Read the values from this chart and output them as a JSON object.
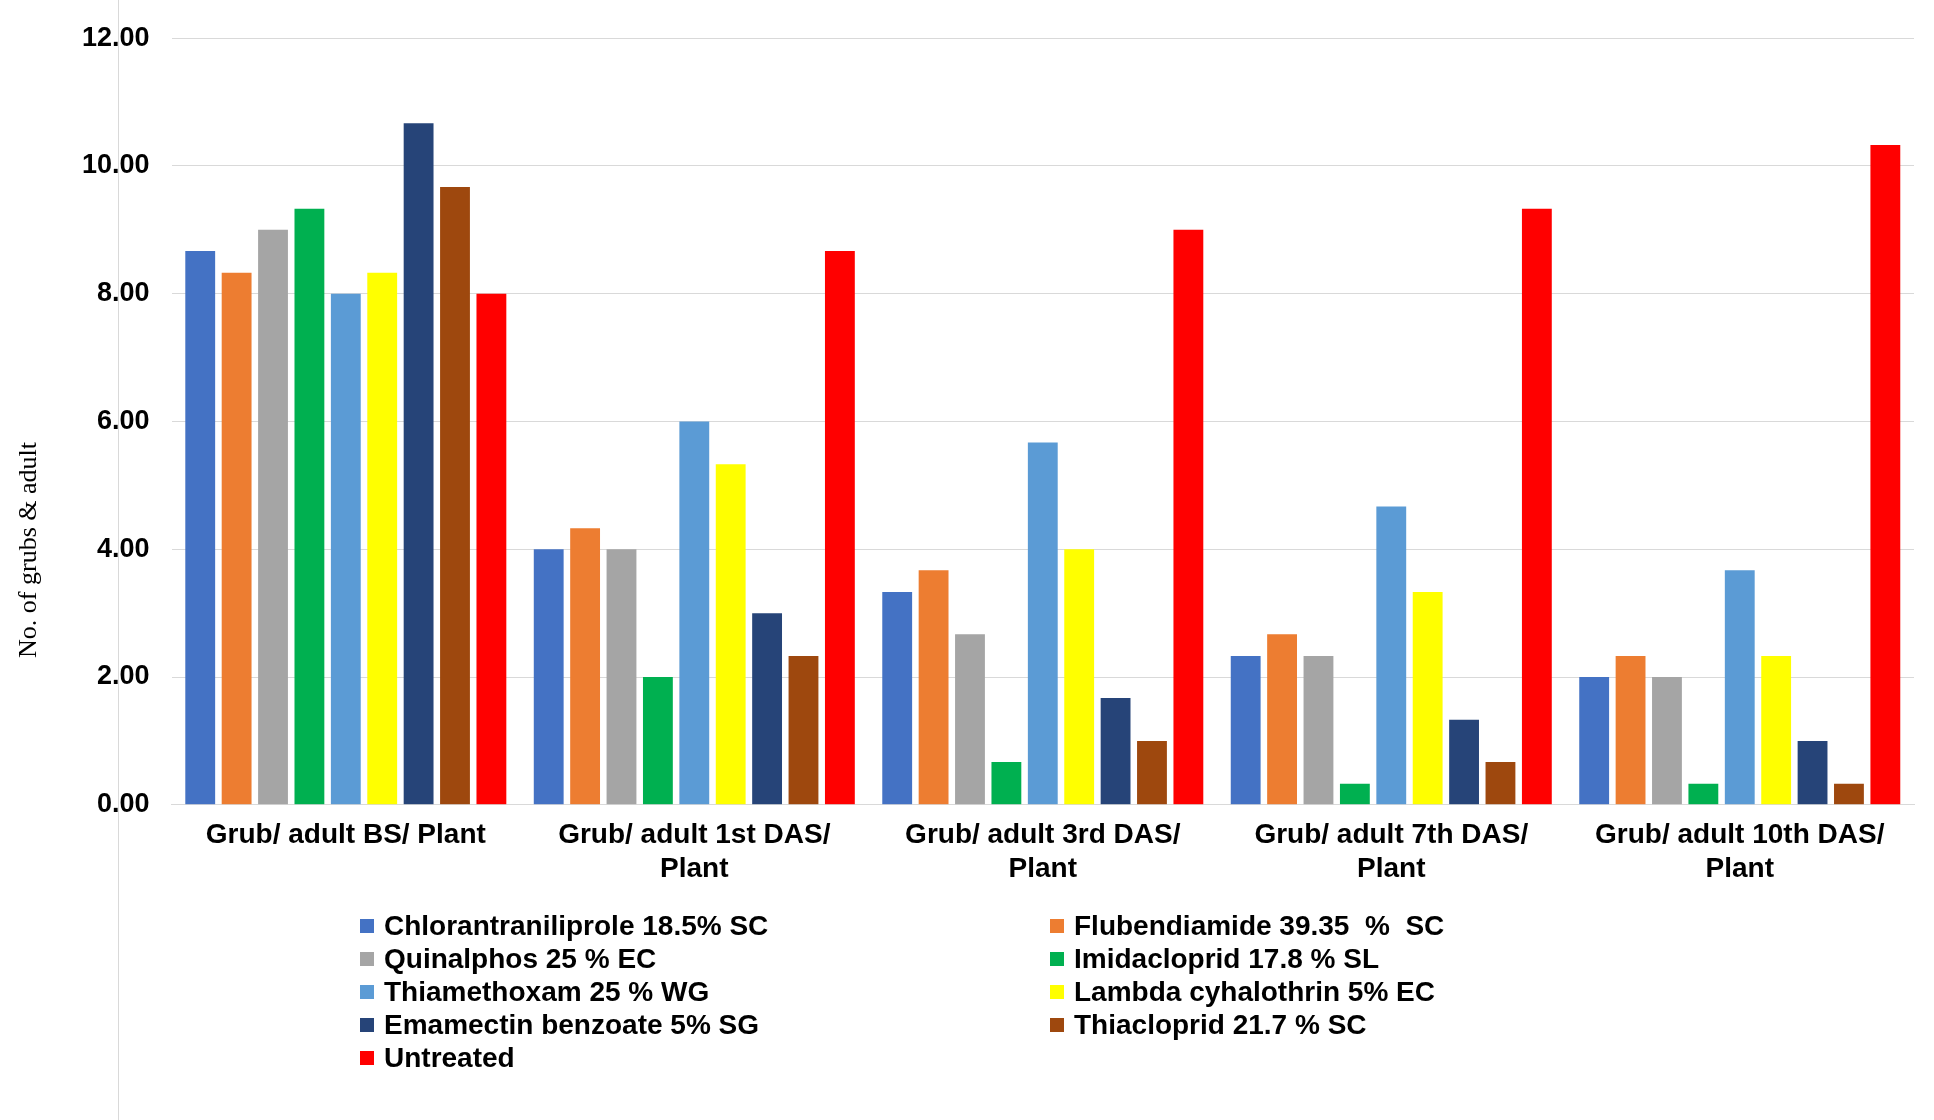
{
  "chart_data": {
    "type": "bar",
    "ylabel": "No. of grubs & adult",
    "categories": [
      "Grub/ adult BS/ Plant",
      "Grub/ adult 1st DAS/ Plant",
      "Grub/ adult 3rd DAS/ Plant",
      "Grub/ adult 7th DAS/ Plant",
      "Grub/ adult 10th DAS/ Plant"
    ],
    "series": [
      {
        "name": "Chlorantraniliprole 18.5% SC",
        "color": "#4472c4",
        "values": [
          8.67,
          4.0,
          3.33,
          2.33,
          2.0
        ]
      },
      {
        "name": "Flubendiamide 39.35  %  SC",
        "color": "#ed7d31",
        "values": [
          8.33,
          4.33,
          3.67,
          2.67,
          2.33
        ]
      },
      {
        "name": "Quinalphos 25 % EC",
        "color": "#a5a5a5",
        "values": [
          9.0,
          4.0,
          2.67,
          2.33,
          2.0
        ]
      },
      {
        "name": "Imidacloprid 17.8 % SL",
        "color": "#00b050",
        "values": [
          9.33,
          2.0,
          0.67,
          0.33,
          0.33
        ]
      },
      {
        "name": "Thiamethoxam 25 % WG",
        "color": "#5b9bd5",
        "values": [
          8.0,
          6.0,
          5.67,
          4.67,
          3.67
        ]
      },
      {
        "name": "Lambda cyhalothrin 5% EC",
        "color": "#ffff00",
        "values": [
          8.33,
          5.33,
          4.0,
          3.33,
          2.33
        ]
      },
      {
        "name": "Emamectin benzoate 5% SG",
        "color": "#264478",
        "values": [
          10.67,
          3.0,
          1.67,
          1.33,
          1.0
        ]
      },
      {
        "name": "Thiacloprid 21.7 % SC",
        "color": "#9e480e",
        "values": [
          9.67,
          2.33,
          1.0,
          0.67,
          0.33
        ]
      },
      {
        "name": "Untreated",
        "color": "#ff0000",
        "values": [
          8.0,
          8.67,
          9.0,
          9.33,
          10.33
        ]
      }
    ],
    "ylim": [
      0,
      12
    ],
    "yticks": [
      {
        "value": 0,
        "label": "0.00"
      },
      {
        "value": 2,
        "label": "2.00"
      },
      {
        "value": 4,
        "label": "4.00"
      },
      {
        "value": 6,
        "label": "6.00"
      },
      {
        "value": 8,
        "label": "8.00"
      },
      {
        "value": 10,
        "label": "10.00"
      },
      {
        "value": 12,
        "label": "12.00"
      }
    ],
    "grid": "y",
    "legend": "bottom"
  }
}
